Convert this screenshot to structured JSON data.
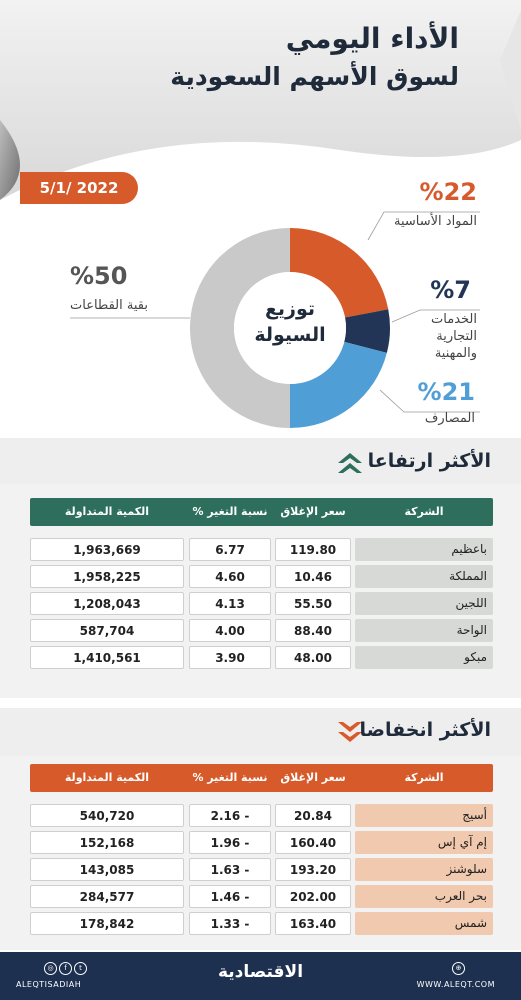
{
  "header": {
    "title_line1": "الأداء اليومي",
    "title_line2": "لسوق الأسهم السعودية",
    "date": "5/1/ 2022"
  },
  "chart_data": {
    "type": "pie",
    "title": "توزيع السيولة",
    "center_line1": "توزيع",
    "center_line2": "السيولة",
    "series": [
      {
        "name": "المواد الأساسية",
        "value": 22,
        "label": "%22",
        "color": "#d75a2b"
      },
      {
        "name": "الخدمات التجارية والمهنية",
        "value": 7,
        "label": "%7",
        "color": "#233556"
      },
      {
        "name": "المصارف",
        "value": 21,
        "label": "%21",
        "color": "#4f9fd6"
      },
      {
        "name": "بقية القطاعات",
        "value": 50,
        "label": "%50",
        "color": "#c9c9c9"
      }
    ],
    "label_lines": {
      "services": [
        "الخدمات",
        "التجارية",
        "والمهنية"
      ]
    }
  },
  "gainers": {
    "title": "الأكثر ارتفاعا",
    "header_color": "#2e6e5c",
    "name_bg": "#d7d9d7",
    "columns": [
      "الشركة",
      "سعر الإغلاق",
      "نسبة التغير %",
      "الكمية المتداولة"
    ],
    "rows": [
      {
        "name": "باعظيم",
        "close": "119.80",
        "change": "6.77",
        "volume": "1,963,669"
      },
      {
        "name": "المملكة",
        "close": "10.46",
        "change": "4.60",
        "volume": "1,958,225"
      },
      {
        "name": "اللجين",
        "close": "55.50",
        "change": "4.13",
        "volume": "1,208,043"
      },
      {
        "name": "الواحة",
        "close": "88.40",
        "change": "4.00",
        "volume": "587,704"
      },
      {
        "name": "مبكو",
        "close": "48.00",
        "change": "3.90",
        "volume": "1,410,561"
      }
    ]
  },
  "losers": {
    "title": "الأكثر انخفاضا",
    "header_color": "#d75a2b",
    "name_bg": "#f1c9ae",
    "columns": [
      "الشركة",
      "سعر الإغلاق",
      "نسبة التغير %",
      "الكمية المتداولة"
    ],
    "rows": [
      {
        "name": "أسيج",
        "close": "20.84",
        "change": "2.16 -",
        "volume": "540,720"
      },
      {
        "name": "إم آي إس",
        "close": "160.40",
        "change": "1.96 -",
        "volume": "152,168"
      },
      {
        "name": "سلوشنز",
        "close": "193.20",
        "change": "1.63 -",
        "volume": "143,085"
      },
      {
        "name": "بحر العرب",
        "close": "202.00",
        "change": "1.46 -",
        "volume": "284,577"
      },
      {
        "name": "شمس",
        "close": "163.40",
        "change": "1.33 -",
        "volume": "178,842"
      }
    ]
  },
  "footer": {
    "handle": "ALEQTISADIAH",
    "logo": "الاقتصادية",
    "website": "WWW.ALEQT.COM"
  }
}
